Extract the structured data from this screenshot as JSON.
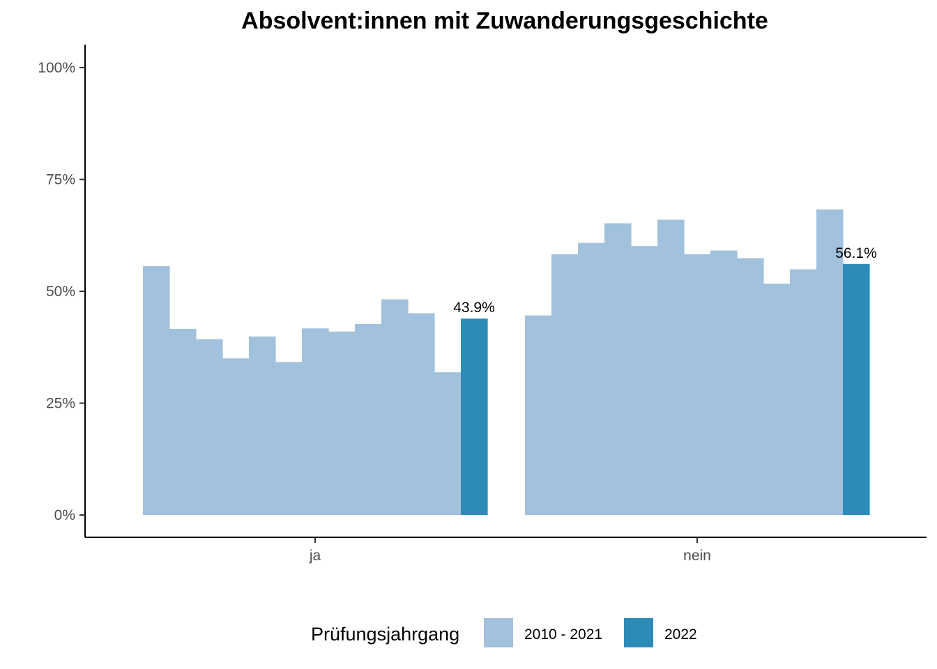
{
  "chart_data": {
    "type": "bar",
    "title": "Absolvent:innen mit Zuwanderungsgeschichte",
    "xlabel": "",
    "ylabel": "",
    "ylim": [
      0,
      1
    ],
    "y_ticks": [
      {
        "value": 0,
        "label": "0%"
      },
      {
        "value": 0.25,
        "label": "25%"
      },
      {
        "value": 0.5,
        "label": "50%"
      },
      {
        "value": 0.75,
        "label": "75%"
      },
      {
        "value": 1,
        "label": "100%"
      }
    ],
    "categories": [
      "ja",
      "nein"
    ],
    "grid": false,
    "legend": {
      "title": "Prüfungsjahrgang",
      "placement": "bottom",
      "items": [
        {
          "label": "2010 - 2021",
          "color": "#a1c1dd"
        },
        {
          "label": "2022",
          "color": "#2e8bb8"
        }
      ]
    },
    "groups": [
      {
        "category": "ja",
        "values": [
          0.556,
          0.416,
          0.393,
          0.35,
          0.399,
          0.342,
          0.417,
          0.41,
          0.427,
          0.482,
          0.451,
          0.319,
          0.439
        ],
        "highlight_index": 12,
        "highlight_label": "43.9%"
      },
      {
        "category": "nein",
        "values": [
          0.446,
          0.583,
          0.608,
          0.652,
          0.601,
          0.66,
          0.583,
          0.591,
          0.574,
          0.517,
          0.549,
          0.683,
          0.561
        ],
        "highlight_index": 12,
        "highlight_label": "56.1%"
      }
    ]
  }
}
